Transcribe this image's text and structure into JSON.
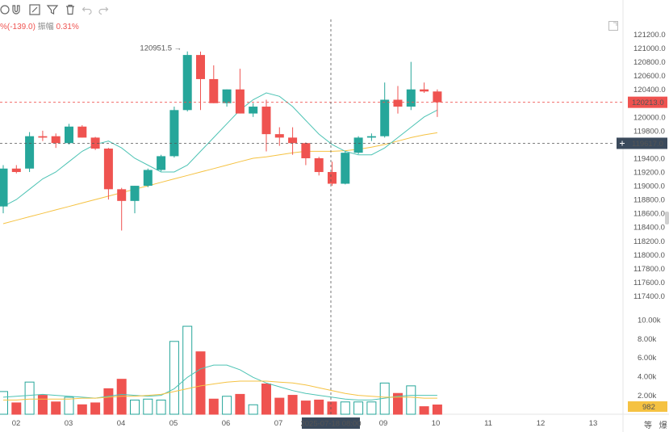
{
  "toolbar": {
    "icons": [
      "crosshair-icon",
      "magnet-icon",
      "pencil-icon",
      "filter-icon",
      "trash-icon",
      "undo-icon",
      "redo-icon"
    ]
  },
  "info": {
    "change_text": "%(-139.0)",
    "amplitude_label": "振幅",
    "amplitude_value": "0.31%"
  },
  "colors": {
    "up": "#26a69a",
    "down": "#ef5350",
    "ma_fast": "#4dc3b4",
    "ma_slow": "#f5c242",
    "crosshair": "#555555"
  },
  "price_axis": {
    "ticks": [
      "121200.0",
      "121000.0",
      "120800.0",
      "120600.0",
      "120400.0",
      "120200.0",
      "120000.0",
      "119800.0",
      "119600.0",
      "119400.0",
      "119200.0",
      "119000.0",
      "118800.0",
      "118600.0",
      "118400.0",
      "118200.0",
      "118000.0",
      "117800.0",
      "117600.0",
      "117400.0"
    ],
    "current_price": "120213.0",
    "crosshair_price": "119617.0"
  },
  "volume_axis": {
    "ticks": [
      "10.00k",
      "8.00k",
      "6.00k",
      "4.00k",
      "2.00k"
    ],
    "current_volume": "982"
  },
  "x_axis": {
    "labels": [
      "02",
      "03",
      "04",
      "05",
      "06",
      "07",
      "09",
      "10",
      "11",
      "12",
      "13"
    ],
    "crosshair_label": "2025-07-18 08:00"
  },
  "max_label": "120951.5",
  "axis_buttons": [
    "等",
    "爆"
  ],
  "chart_data": {
    "type": "candlestick",
    "price_range": [
      117300,
      121300
    ],
    "volume_range": [
      0,
      10500
    ],
    "candles": [
      {
        "o": 118700,
        "h": 119300,
        "l": 118600,
        "c": 119250
      },
      {
        "o": 119250,
        "h": 119300,
        "l": 119180,
        "c": 119200
      },
      {
        "o": 119250,
        "h": 119780,
        "l": 119200,
        "c": 119720
      },
      {
        "o": 119720,
        "h": 119800,
        "l": 119650,
        "c": 119700
      },
      {
        "o": 119720,
        "h": 119760,
        "l": 119550,
        "c": 119620
      },
      {
        "o": 119620,
        "h": 119900,
        "l": 119600,
        "c": 119860
      },
      {
        "o": 119860,
        "h": 119880,
        "l": 119700,
        "c": 119700
      },
      {
        "o": 119700,
        "h": 119710,
        "l": 119520,
        "c": 119540
      },
      {
        "o": 119540,
        "h": 119550,
        "l": 118800,
        "c": 118950
      },
      {
        "o": 118950,
        "h": 118970,
        "l": 118350,
        "c": 118780
      },
      {
        "o": 118780,
        "h": 119000,
        "l": 118600,
        "c": 119000
      },
      {
        "o": 119000,
        "h": 119250,
        "l": 118980,
        "c": 119230
      },
      {
        "o": 119230,
        "h": 119450,
        "l": 119210,
        "c": 119430
      },
      {
        "o": 119430,
        "h": 120150,
        "l": 119410,
        "c": 120100
      },
      {
        "o": 120100,
        "h": 120951.5,
        "l": 120080,
        "c": 120900
      },
      {
        "o": 120900,
        "h": 120950,
        "l": 120100,
        "c": 120550
      },
      {
        "o": 120550,
        "h": 120750,
        "l": 120200,
        "c": 120200
      },
      {
        "o": 120200,
        "h": 120400,
        "l": 120150,
        "c": 120400
      },
      {
        "o": 120400,
        "h": 120700,
        "l": 120050,
        "c": 120050
      },
      {
        "o": 120050,
        "h": 120200,
        "l": 120000,
        "c": 120150
      },
      {
        "o": 120150,
        "h": 120250,
        "l": 119500,
        "c": 119750
      },
      {
        "o": 119750,
        "h": 119850,
        "l": 119580,
        "c": 119700
      },
      {
        "o": 119700,
        "h": 119850,
        "l": 119450,
        "c": 119620
      },
      {
        "o": 119620,
        "h": 119630,
        "l": 119300,
        "c": 119400
      },
      {
        "o": 119400,
        "h": 119420,
        "l": 119150,
        "c": 119200
      },
      {
        "o": 119200,
        "h": 119350,
        "l": 119000,
        "c": 119030
      },
      {
        "o": 119030,
        "h": 119500,
        "l": 119020,
        "c": 119480
      },
      {
        "o": 119480,
        "h": 119720,
        "l": 119460,
        "c": 119700
      },
      {
        "o": 119700,
        "h": 119760,
        "l": 119650,
        "c": 119720
      },
      {
        "o": 119720,
        "h": 120500,
        "l": 119700,
        "c": 120250
      },
      {
        "o": 120250,
        "h": 120450,
        "l": 120050,
        "c": 120150
      },
      {
        "o": 120150,
        "h": 120800,
        "l": 120100,
        "c": 120400
      },
      {
        "o": 120400,
        "h": 120500,
        "l": 120350,
        "c": 120370
      },
      {
        "o": 120370,
        "h": 120400,
        "l": 120000,
        "c": 120213
      }
    ],
    "volumes": [
      2400,
      1200,
      3400,
      2000,
      1300,
      1800,
      1000,
      1200,
      2700,
      3700,
      1500,
      1600,
      1500,
      7700,
      9300,
      6600,
      1600,
      1900,
      2100,
      1000,
      3200,
      1700,
      2000,
      1400,
      1500,
      1300,
      1300,
      1300,
      1300,
      3300,
      2200,
      3000,
      800,
      982
    ],
    "ma_fast": [
      118700,
      118800,
      118950,
      119100,
      119200,
      119350,
      119500,
      119600,
      119650,
      119550,
      119400,
      119300,
      119200,
      119200,
      119300,
      119500,
      119700,
      119900,
      120100,
      120250,
      120350,
      120300,
      120150,
      119950,
      119750,
      119600,
      119500,
      119450,
      119450,
      119550,
      119700,
      119850,
      120000,
      120100
    ],
    "ma_slow": [
      118450,
      118500,
      118550,
      118600,
      118650,
      118700,
      118750,
      118800,
      118850,
      118900,
      118950,
      119000,
      119050,
      119100,
      119150,
      119200,
      119250,
      119300,
      119350,
      119400,
      119420,
      119450,
      119480,
      119500,
      119500,
      119500,
      119510,
      119530,
      119560,
      119600,
      119650,
      119700,
      119740,
      119770
    ],
    "vol_ma_fast": [
      1800,
      1900,
      2000,
      2100,
      2000,
      1900,
      1800,
      1700,
      1900,
      2100,
      2000,
      1900,
      2000,
      2700,
      3900,
      4800,
      5200,
      5200,
      4700,
      3900,
      3300,
      2900,
      2500,
      2200,
      2000,
      1800,
      1600,
      1500,
      1500,
      1700,
      1900,
      2000,
      2000,
      2000
    ],
    "vol_ma_slow": [
      1500,
      1500,
      1600,
      1600,
      1600,
      1600,
      1700,
      1700,
      1800,
      1900,
      1900,
      2000,
      2100,
      2400,
      2700,
      3000,
      3200,
      3400,
      3500,
      3500,
      3500,
      3400,
      3300,
      3100,
      2800,
      2500,
      2200,
      2000,
      1900,
      1800,
      1800,
      1800,
      1700,
      1700
    ]
  }
}
